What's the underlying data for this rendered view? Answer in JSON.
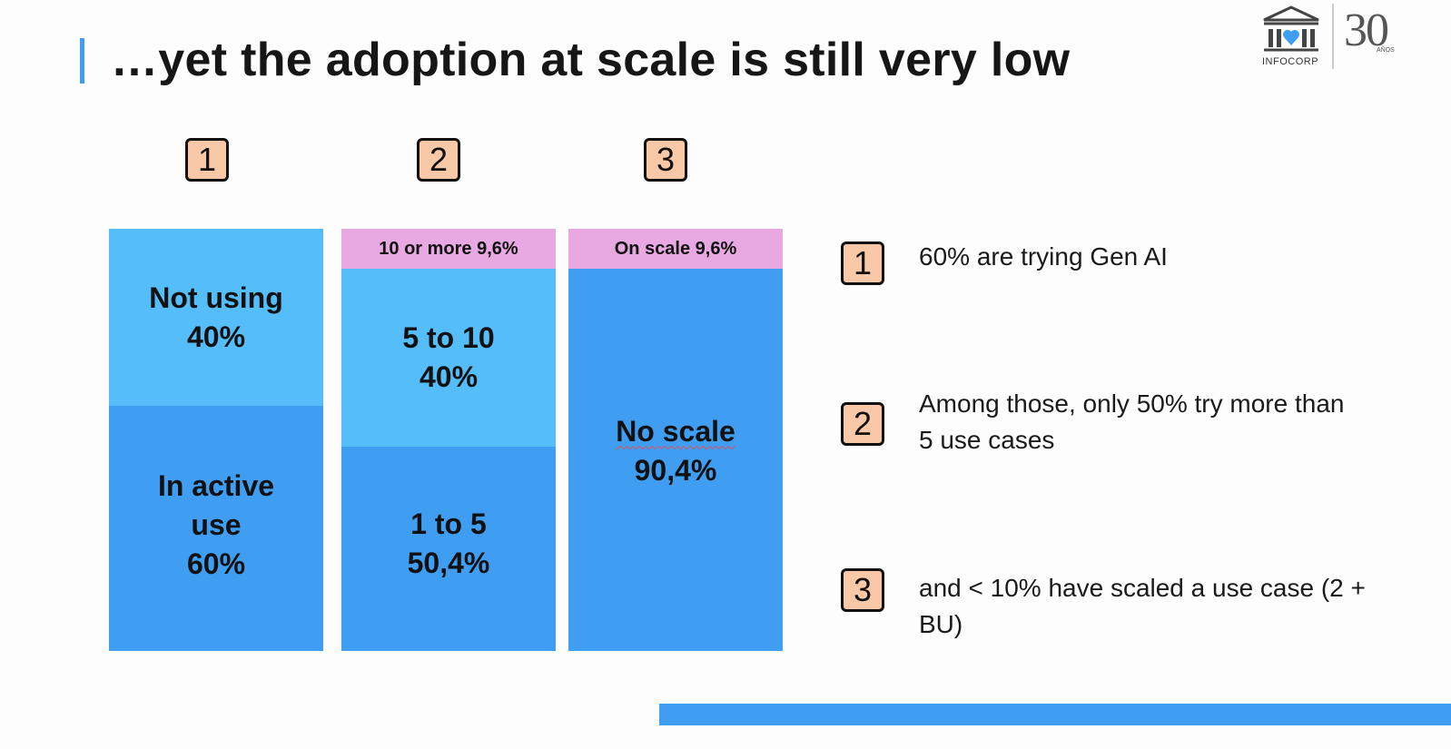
{
  "slide": {
    "title": "…yet the adoption at scale is still very low"
  },
  "logo": {
    "brand": "INFOCORP",
    "anniversary_number": "30",
    "anniversary_word": "AÑOS"
  },
  "colors": {
    "accent": "#3f9ef2",
    "light_blue": "#55befa",
    "dark_blue": "#3f9ef2",
    "pink": "#e8a9e2",
    "badge": "#f9c8a6"
  },
  "badges": [
    "1",
    "2",
    "3"
  ],
  "columns": [
    {
      "segments": [
        {
          "lines": [
            "Not using",
            "40%"
          ]
        },
        {
          "lines": [
            "In active",
            "use",
            "60%"
          ]
        }
      ]
    },
    {
      "segments": [
        {
          "lines": [
            "10 or more 9,6%"
          ]
        },
        {
          "lines": [
            "5 to 10",
            "40%"
          ]
        },
        {
          "lines": [
            "1 to 5",
            "50,4%"
          ]
        }
      ]
    },
    {
      "segments": [
        {
          "lines": [
            "On scale 9,6%"
          ]
        },
        {
          "lines": [
            "No scale",
            "90,4%"
          ]
        }
      ]
    }
  ],
  "notes": [
    {
      "badge": "1",
      "text": "60% are trying Gen AI"
    },
    {
      "badge": "2",
      "text": "Among those, only 50% try more than 5 use cases"
    },
    {
      "badge": "3",
      "text": "and < 10% have scaled a use case (2 + BU)"
    }
  ]
}
